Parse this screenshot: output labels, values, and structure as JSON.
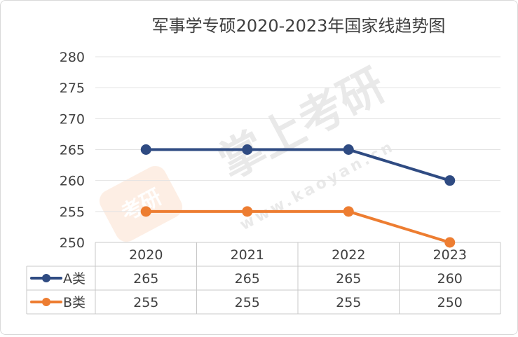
{
  "chart_data": {
    "type": "line",
    "title": "军事学专硕2020-2023年国家线趋势图",
    "categories": [
      "2020",
      "2021",
      "2022",
      "2023"
    ],
    "series": [
      {
        "name": "A类",
        "values": [
          265,
          265,
          265,
          260
        ],
        "color": "#2f4b82"
      },
      {
        "name": "B类",
        "values": [
          255,
          255,
          255,
          250
        ],
        "color": "#ed7d31"
      }
    ],
    "yticks": [
      250,
      255,
      260,
      265,
      270,
      275,
      280
    ],
    "ylim": [
      250,
      280
    ],
    "grid": true,
    "legend": "data-table"
  },
  "watermark": {
    "text": "掌上考研",
    "url": "www.kaoyan.cn",
    "logo_text": "考研"
  }
}
